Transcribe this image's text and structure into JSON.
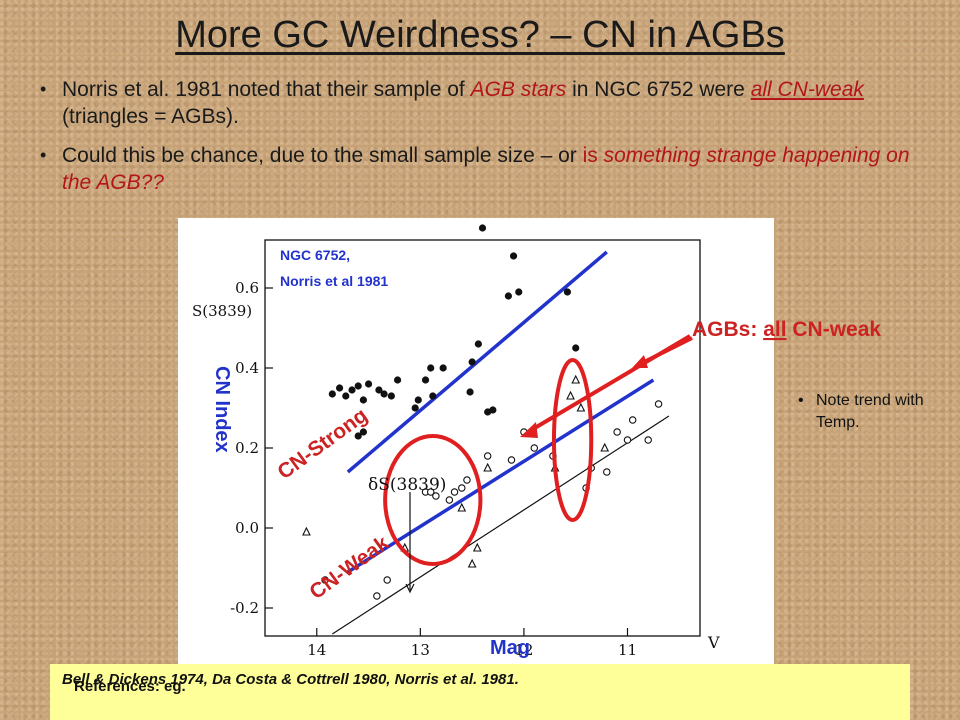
{
  "slide": {
    "title": "More GC Weirdness? – CN in AGBs",
    "bullet1": {
      "a": "Norris et al. 1981 noted that their sample of ",
      "b": "AGB stars",
      "c": " in NGC 6752 were ",
      "d": "all CN-weak",
      "e": " (triangles = AGBs)."
    },
    "bullet2": {
      "a": "Could this be chance, due to the small sample size – or ",
      "b": "is",
      "c": " something strange happening on the AGB??"
    },
    "note": "Note trend with Temp.",
    "references": {
      "prefix": "References: eg. ",
      "list": "Bell & Dickens 1974, Da Costa & Cottrell 1980, Norris et al. 1981."
    }
  },
  "chart_data": {
    "type": "scatter",
    "annotation_title": [
      "NGC 6752,",
      "Norris et al 1981"
    ],
    "ylabel": "S(3839)",
    "xlabel": "V",
    "ylabel_overlay": "CN Index",
    "xlabel_overlay": "Mag",
    "label_strong": "CN-Strong",
    "label_weak": "CN-Weak",
    "delta_label": "δS(3839)",
    "agb_label_prefix": "AGBs: ",
    "agb_label_all": "all",
    "agb_label_suffix": " CN-weak",
    "x_ticks": [
      "14",
      "13",
      "12",
      "11"
    ],
    "y_ticks": [
      "0.6",
      "0.4",
      "0.2",
      "0.0",
      "-0.2"
    ],
    "xlim": [
      14.5,
      10.3
    ],
    "ylim": [
      -0.27,
      0.72
    ],
    "colors": {
      "fit": "#2233cc",
      "highlight": "#e02020",
      "point": "#111111",
      "label": "#cc2222",
      "axis_overlay": "#2233cc"
    },
    "series": [
      {
        "name": "",
        "marker": "filled-circle",
        "x": [
          13.85,
          13.78,
          13.72,
          13.66,
          13.6,
          13.55,
          13.5,
          13.4,
          13.35,
          13.28,
          13.22,
          13.05,
          13.02,
          12.95,
          12.9,
          12.78,
          12.5,
          12.52,
          12.44,
          12.4,
          12.35,
          12.3,
          12.15,
          12.1,
          12.05,
          11.58,
          11.5,
          13.55,
          13.6,
          12.88
        ],
        "y": [
          0.335,
          0.35,
          0.33,
          0.345,
          0.355,
          0.32,
          0.36,
          0.345,
          0.335,
          0.33,
          0.37,
          0.3,
          0.32,
          0.37,
          0.4,
          0.4,
          0.415,
          0.34,
          0.46,
          0.75,
          0.29,
          0.295,
          0.58,
          0.68,
          0.59,
          0.59,
          0.45,
          0.24,
          0.23,
          0.33
        ]
      },
      {
        "name": "",
        "marker": "open-circle",
        "x": [
          13.92,
          13.42,
          13.32,
          12.72,
          12.67,
          12.6,
          12.55,
          12.35,
          12.12,
          12.0,
          11.9,
          11.72,
          11.4,
          11.35,
          11.2,
          11.1,
          11.0,
          10.95,
          10.8,
          10.7,
          12.95,
          12.9,
          12.85
        ],
        "y": [
          -0.13,
          -0.17,
          -0.13,
          0.07,
          0.09,
          0.1,
          0.12,
          0.18,
          0.17,
          0.24,
          0.2,
          0.18,
          0.1,
          0.15,
          0.14,
          0.24,
          0.22,
          0.27,
          0.22,
          0.31,
          0.09,
          0.09,
          0.08
        ],
        "note": ""
      },
      {
        "name": "",
        "marker": "triangle",
        "x": [
          14.1,
          13.15,
          12.6,
          12.5,
          12.45,
          12.35,
          11.7,
          11.55,
          11.5,
          11.45,
          11.22
        ],
        "y": [
          -0.01,
          -0.05,
          0.05,
          -0.09,
          -0.05,
          0.15,
          0.15,
          0.33,
          0.37,
          0.3,
          0.2
        ]
      }
    ],
    "fit_lines": [
      {
        "name": "CN-Strong",
        "x": [
          13.7,
          11.2
        ],
        "y": [
          0.14,
          0.69
        ]
      },
      {
        "name": "CN-Weak",
        "x": [
          13.7,
          10.75
        ],
        "y": [
          -0.11,
          0.37
        ]
      },
      {
        "name": "",
        "style": "thin-black",
        "x": [
          13.85,
          10.6
        ],
        "y": [
          -0.265,
          0.28
        ]
      }
    ],
    "highlight_ellipses": [
      {
        "cx": 12.88,
        "cy": 0.07,
        "rx_data": 0.46,
        "ry_data": 0.16
      },
      {
        "cx": 11.53,
        "cy": 0.22,
        "rx_data": 0.18,
        "ry_data": 0.2
      }
    ]
  }
}
